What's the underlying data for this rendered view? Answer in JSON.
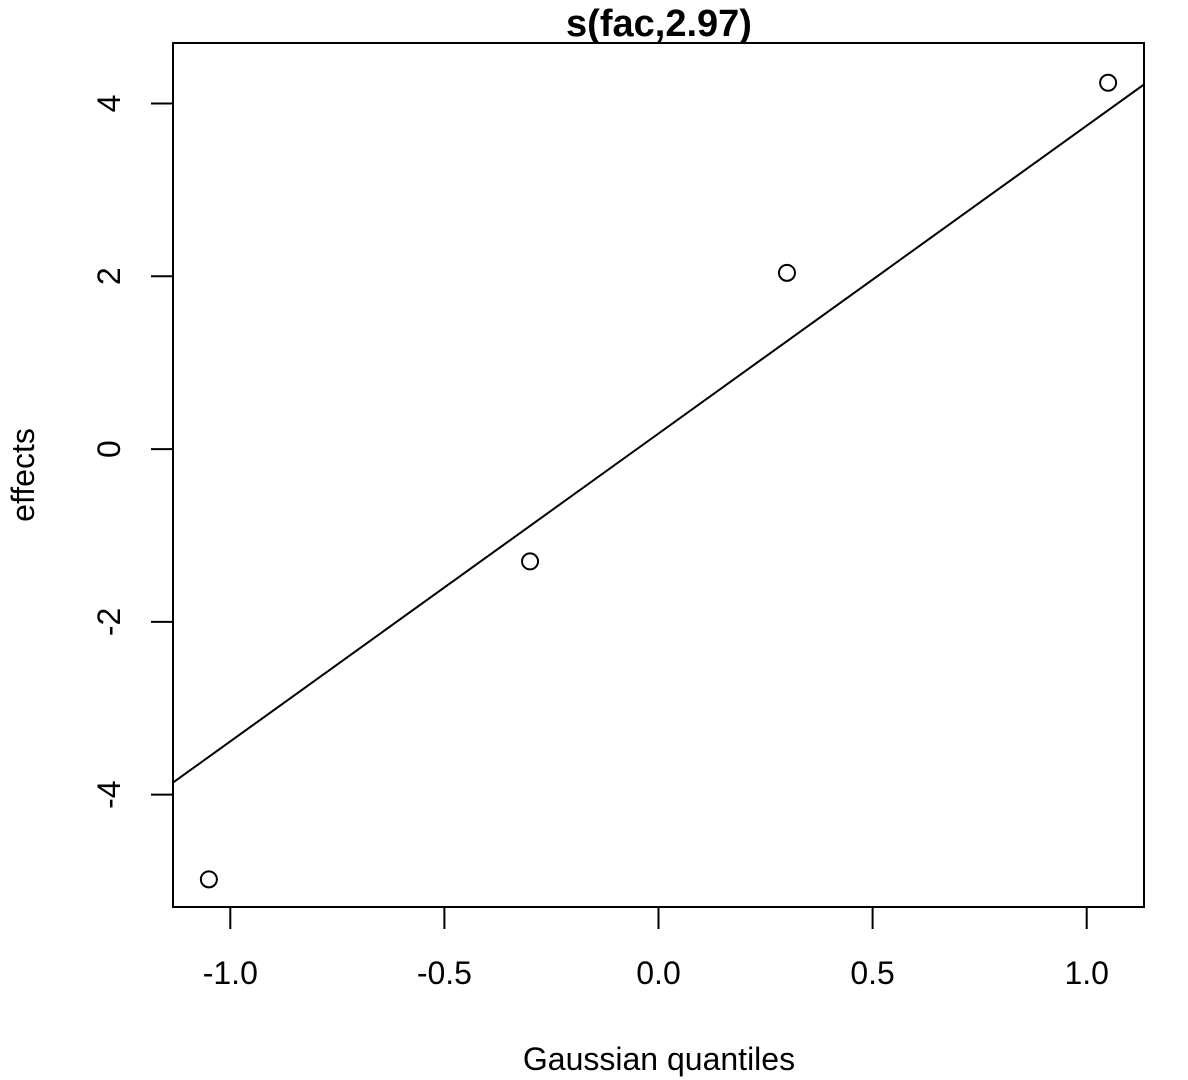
{
  "chart_data": {
    "type": "scatter",
    "title": "s(fac,2.97)",
    "xlabel": "Gaussian quantiles",
    "ylabel": "effects",
    "xlim": [
      -1.1338,
      1.1338
    ],
    "ylim": [
      -5.3,
      4.7
    ],
    "x_ticks": [
      -1.0,
      -0.5,
      0.0,
      0.5,
      1.0
    ],
    "x_tick_labels": [
      "-1.0",
      "-0.5",
      "0.0",
      "0.5",
      "1.0"
    ],
    "y_ticks": [
      -4,
      -2,
      0,
      2,
      4
    ],
    "y_tick_labels": [
      "-4",
      "-2",
      "0",
      "2",
      "4"
    ],
    "grid": false,
    "series": [
      {
        "points": [
          {
            "x": -1.05,
            "y": -4.98
          },
          {
            "x": -0.3,
            "y": -1.3
          },
          {
            "x": 0.3,
            "y": 2.04
          },
          {
            "x": 1.05,
            "y": 4.24
          }
        ]
      }
    ],
    "reference_line": {
      "from": [
        -1.1338,
        -3.86
      ],
      "to": [
        1.1338,
        4.22
      ]
    },
    "colors": {
      "points": "#000000",
      "line": "#000000",
      "axes": "#000000"
    }
  }
}
